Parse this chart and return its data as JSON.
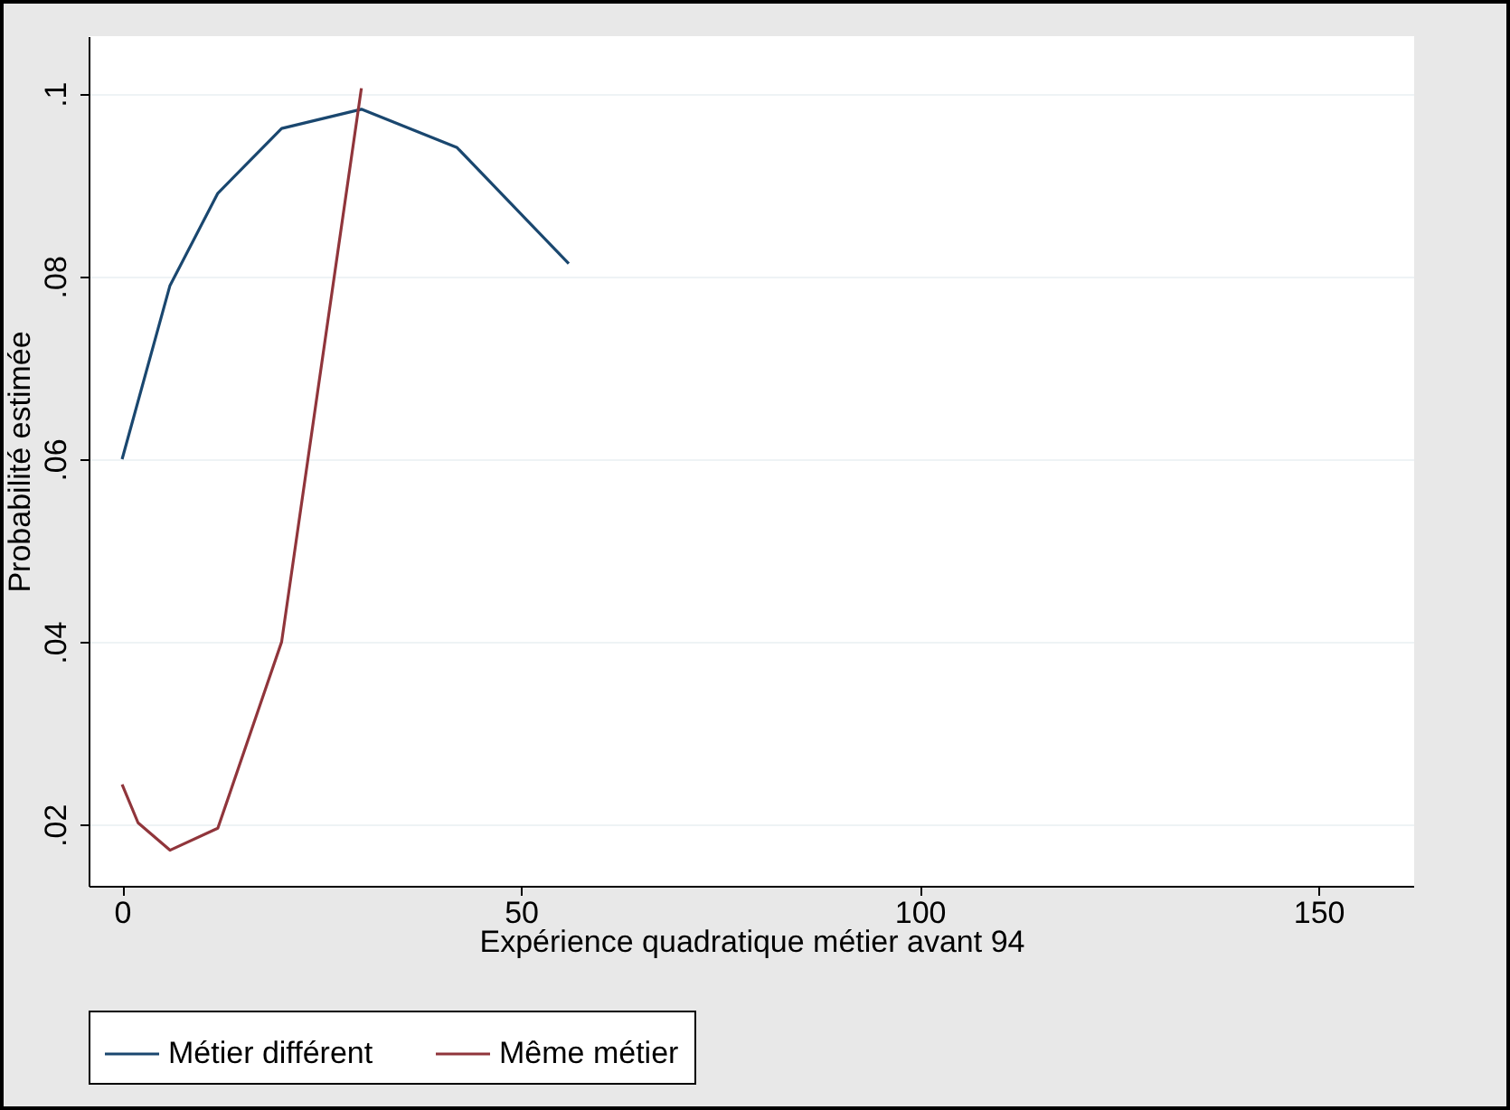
{
  "chart_data": {
    "type": "line",
    "xlabel": "Expérience quadratique métier avant 94",
    "ylabel": "Probabilité estimée",
    "xlim": [
      -4.2,
      162
    ],
    "xticks": [
      0,
      50,
      100,
      150
    ],
    "ylim": [
      0.0133,
      0.1063
    ],
    "yticks": [
      {
        "value": 0.02,
        "label": ".02"
      },
      {
        "value": 0.04,
        "label": ".04"
      },
      {
        "value": 0.06,
        "label": ".06"
      },
      {
        "value": 0.08,
        "label": ".08"
      },
      {
        "value": 0.1,
        "label": ".1"
      }
    ],
    "grid": "y",
    "legend": "bottom",
    "marker": "none",
    "line_style": "solid",
    "series": [
      {
        "name": "Métier différent",
        "color": "#1a476f",
        "x": [
          0,
          6,
          12,
          20,
          30,
          42,
          56
        ],
        "values": [
          0.06,
          0.079,
          0.0891,
          0.0962,
          0.0983,
          0.0941,
          0.0814
        ]
      },
      {
        "name": "Même métier",
        "color": "#90353b",
        "x": [
          0,
          2,
          6,
          12,
          20,
          30
        ],
        "values": [
          0.0244,
          0.0202,
          0.0172,
          0.0196,
          0.04,
          0.1006
        ]
      }
    ]
  }
}
